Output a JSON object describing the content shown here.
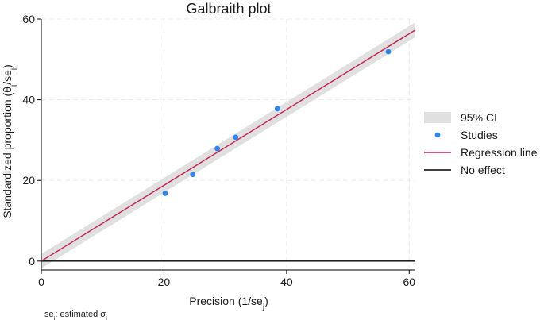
{
  "chart_data": {
    "type": "scatter",
    "title": "Galbraith plot",
    "xlabel": {
      "main": "Precision (1/se",
      "sub": "j",
      "tail": ")"
    },
    "ylabel": {
      "main": "Standardized proportion  (θ",
      "sub1": "j",
      "mid": "/se",
      "sub2": "j",
      "tail": ")"
    },
    "note": {
      "pre": "se",
      "sub": "j",
      "post": ": estimated σ",
      "sub2": "j"
    },
    "xlim": [
      0,
      61
    ],
    "ylim": [
      -2,
      60
    ],
    "xticks": [
      0,
      20,
      40,
      60
    ],
    "yticks": [
      0,
      20,
      40,
      60
    ],
    "grid": true,
    "legend_position": "right",
    "series": [
      {
        "name": "95% CI",
        "kind": "band",
        "color": "#e0e0e0",
        "x": [
          0,
          61
        ],
        "lower": [
          -1.8,
          55.5
        ],
        "upper": [
          1.8,
          59.2
        ]
      },
      {
        "name": "Studies",
        "kind": "points",
        "color": "#2f86e8",
        "points": [
          {
            "x": 20.2,
            "y": 16.8
          },
          {
            "x": 24.7,
            "y": 21.5
          },
          {
            "x": 28.7,
            "y": 27.9
          },
          {
            "x": 31.7,
            "y": 30.7
          },
          {
            "x": 38.5,
            "y": 37.8
          },
          {
            "x": 56.6,
            "y": 51.9
          }
        ]
      },
      {
        "name": "Regression line",
        "kind": "line",
        "color": "#c4224f",
        "x": [
          0,
          61
        ],
        "y": [
          0,
          57.3
        ]
      },
      {
        "name": "No effect",
        "kind": "line",
        "color": "#000000",
        "x": [
          0,
          61
        ],
        "y": [
          0,
          0
        ]
      }
    ]
  }
}
